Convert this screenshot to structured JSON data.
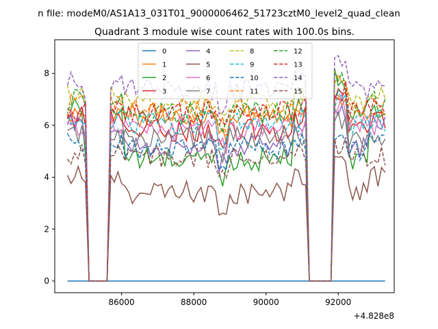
{
  "chart_data": {
    "type": "line",
    "suptitle": "n file: modeM0/AS1A13_031T01_9000006462_51723cztM0_level2_quad_clean",
    "title": "Quadrant 3 module wise count rates with 100.0s bins.",
    "xlabel": "",
    "ylabel": "",
    "x_offset_label": "+4.828e8",
    "xlim": [
      84150,
      93550
    ],
    "ylim": [
      -0.45,
      9.3
    ],
    "xticks": [
      86000,
      88000,
      90000,
      92000
    ],
    "xtick_labels": [
      "86000",
      "88000",
      "90000",
      "92000"
    ],
    "yticks": [
      0,
      2,
      4,
      6,
      8
    ],
    "ytick_labels": [
      "0",
      "2",
      "4",
      "6",
      "8"
    ],
    "x_range": [
      84500,
      93300
    ],
    "bin_width": 100,
    "gaps": [
      [
        85100,
        85650
      ],
      [
        91150,
        91850
      ]
    ],
    "legend_location": "upper center",
    "series": [
      {
        "name": "0",
        "color": "#1f77b4",
        "style": "solid",
        "baseline": 0.0,
        "edge": 0.0,
        "peak": 0.0
      },
      {
        "name": "1",
        "color": "#ff7f0e",
        "style": "solid",
        "baseline": 6.4,
        "edge": 6.5,
        "peak": 7.0
      },
      {
        "name": "2",
        "color": "#2ca02c",
        "style": "solid",
        "baseline": 4.7,
        "edge": 6.7,
        "peak": 7.8
      },
      {
        "name": "3",
        "color": "#d62728",
        "style": "solid",
        "baseline": 5.8,
        "edge": 6.3,
        "peak": 7.2
      },
      {
        "name": "4",
        "color": "#9467bd",
        "style": "solid",
        "baseline": 5.2,
        "edge": 6.0,
        "peak": 6.6
      },
      {
        "name": "5",
        "color": "#8c564b",
        "style": "solid",
        "baseline": 3.4,
        "edge": 4.0,
        "peak": 4.5
      },
      {
        "name": "6",
        "color": "#e377c2",
        "style": "solid",
        "baseline": 5.9,
        "edge": 6.0,
        "peak": 6.8
      },
      {
        "name": "7",
        "color": "#7f7f7f",
        "style": "solid",
        "baseline": 5.5,
        "edge": 5.6,
        "peak": 6.2
      },
      {
        "name": "8",
        "color": "#bcbd22",
        "style": "dashed",
        "baseline": 6.9,
        "edge": 7.3,
        "peak": 7.9
      },
      {
        "name": "9",
        "color": "#17becf",
        "style": "dashed",
        "baseline": 6.1,
        "edge": 6.2,
        "peak": 7.0
      },
      {
        "name": "10",
        "color": "#1f77b4",
        "style": "dashed",
        "baseline": 5.1,
        "edge": 5.3,
        "peak": 5.6
      },
      {
        "name": "11",
        "color": "#ff7f0e",
        "style": "dashed",
        "baseline": 6.6,
        "edge": 6.8,
        "peak": 7.5
      },
      {
        "name": "12",
        "color": "#2ca02c",
        "style": "dashed",
        "baseline": 6.5,
        "edge": 7.0,
        "peak": 7.7
      },
      {
        "name": "13",
        "color": "#d62728",
        "style": "dashed",
        "baseline": 6.5,
        "edge": 6.6,
        "peak": 7.4
      },
      {
        "name": "14",
        "color": "#9467bd",
        "style": "dashed",
        "baseline": 7.4,
        "edge": 7.8,
        "peak": 8.6
      },
      {
        "name": "15",
        "color": "#8c564b",
        "style": "dashed",
        "baseline": 4.8,
        "edge": 4.9,
        "peak": 5.2
      }
    ]
  }
}
